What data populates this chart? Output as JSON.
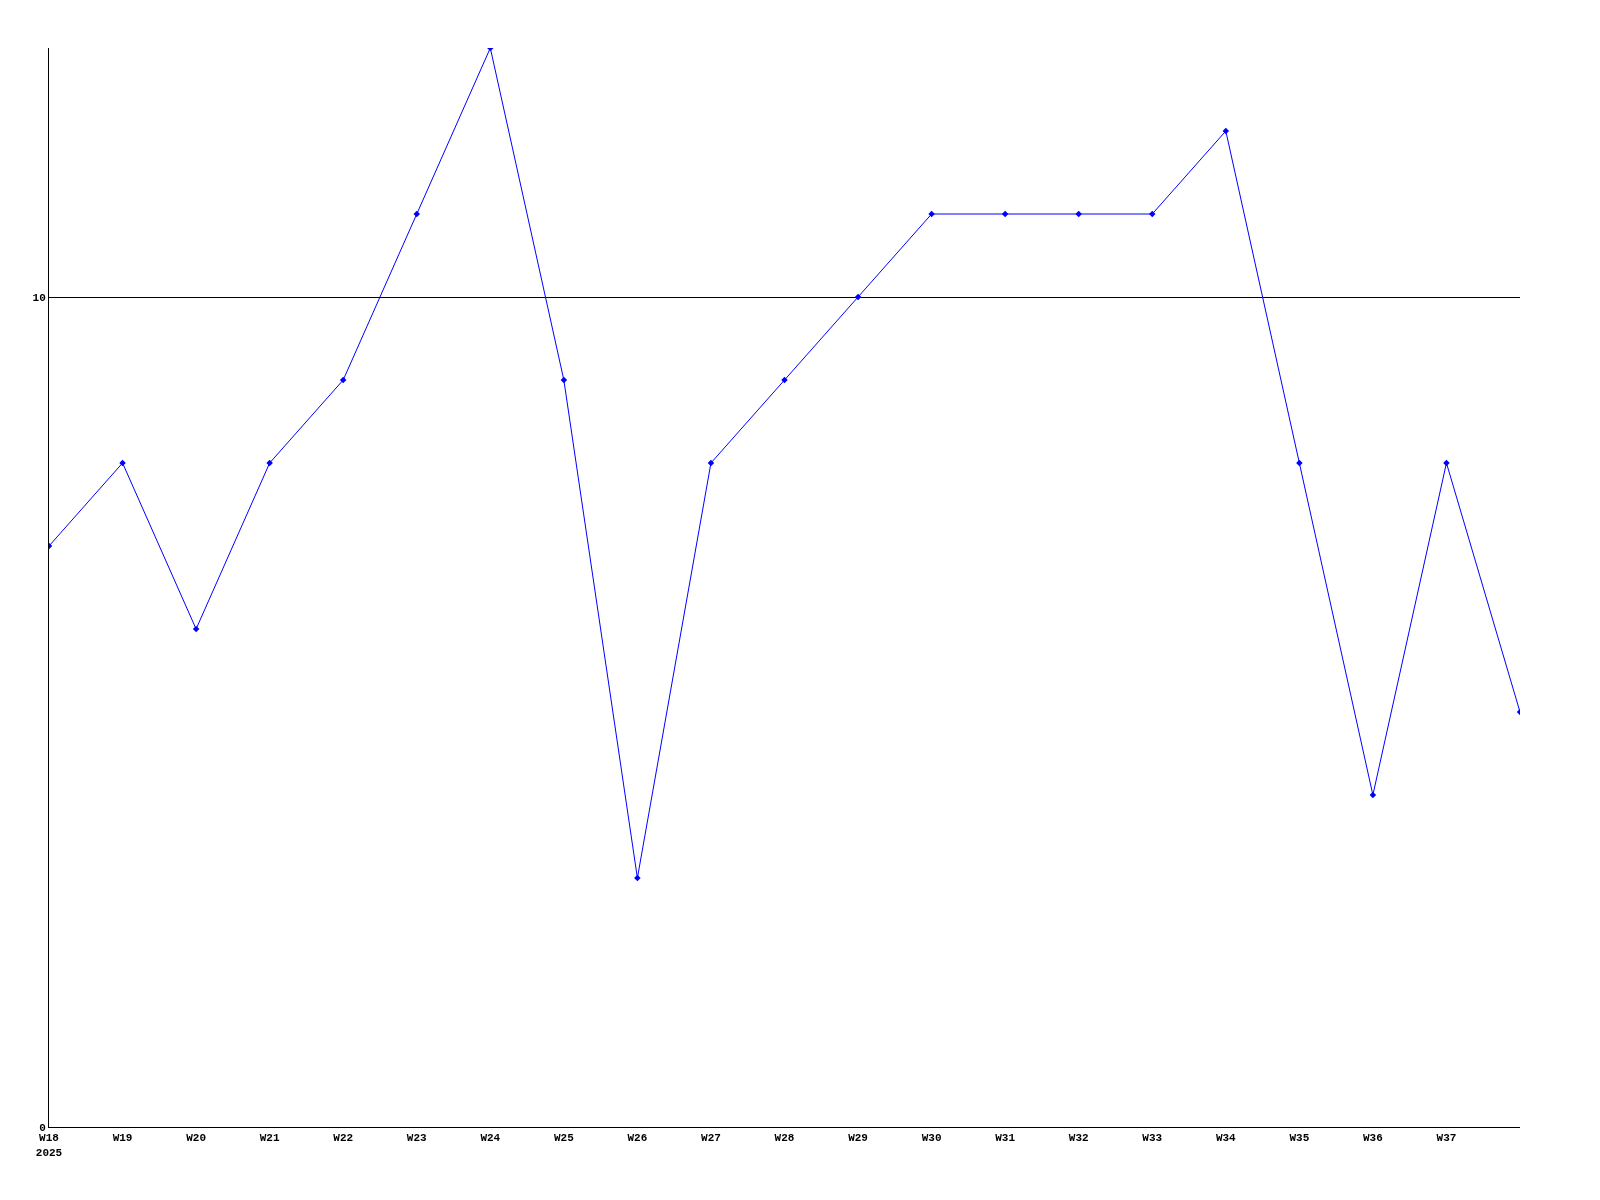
{
  "chart_data": {
    "type": "line",
    "categories": [
      "W18\n2025",
      "W19",
      "W20",
      "W21",
      "W22",
      "W23",
      "W24",
      "W25",
      "W26",
      "W27",
      "W28",
      "W29",
      "W30",
      "W31",
      "W32",
      "W33",
      "W34",
      "W35",
      "W36",
      "W37",
      null
    ],
    "series": [
      {
        "color": "#0000ff",
        "values": [
          7,
          8,
          6,
          8,
          9,
          11,
          13,
          9,
          3,
          8,
          9,
          10,
          11,
          11,
          11,
          11,
          12,
          8,
          4,
          8,
          5
        ]
      }
    ],
    "ylim": [
      0,
      13
    ],
    "yticks": [
      0,
      10
    ],
    "grid": "y",
    "marker": "diamond",
    "line_style": "solid"
  }
}
